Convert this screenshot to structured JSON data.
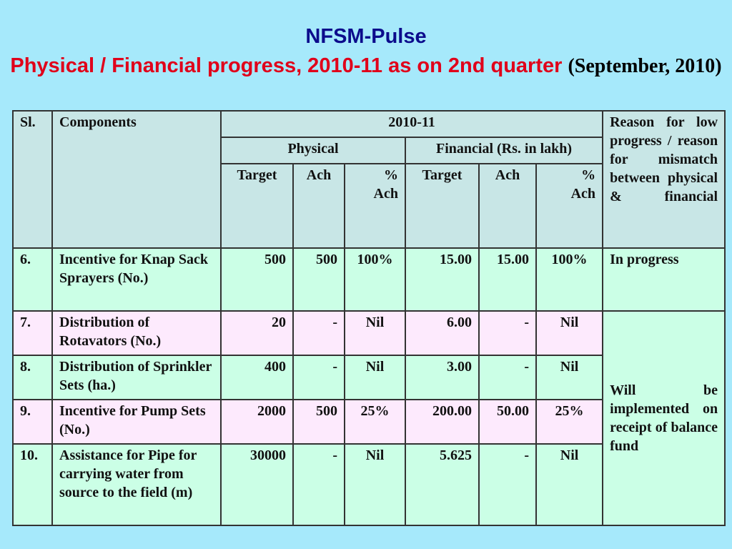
{
  "title": "NFSM-Pulse",
  "subtitle_main": "Physical / Financial progress, 2010-11 as on 2nd quarter",
  "subtitle_note": "(September, 2010)",
  "table": {
    "headers": {
      "sl": "Sl.",
      "components": "Components",
      "year": "2010-11",
      "physical": "Physical",
      "financial": "Financial (Rs. in lakh)",
      "target": "Target",
      "ach": "Ach",
      "pct_ach": "% Ach",
      "reason": "Reason for low progress / reason for mismatch between physical & financial"
    },
    "rows": [
      {
        "sl": "6.",
        "component": "Incentive for Knap Sack Sprayers (No.)",
        "p_target": "500",
        "p_ach": "500",
        "p_pct": "100%",
        "f_target": "15.00",
        "f_ach": "15.00",
        "f_pct": "100%",
        "reason": "In progress"
      },
      {
        "sl": "7.",
        "component": "Distribution of Rotavators (No.)",
        "p_target": "20",
        "p_ach": "-",
        "p_pct": "Nil",
        "f_target": "6.00",
        "f_ach": "-",
        "f_pct": "Nil",
        "reason": "Will be implemented on receipt of balance fund"
      },
      {
        "sl": "8.",
        "component": "Distribution of Sprinkler Sets (ha.)",
        "p_target": "400",
        "p_ach": "-",
        "p_pct": "Nil",
        "f_target": "3.00",
        "f_ach": "-",
        "f_pct": "Nil"
      },
      {
        "sl": "9.",
        "component": "Incentive for Pump Sets (No.)",
        "p_target": "2000",
        "p_ach": "500",
        "p_pct": "25%",
        "f_target": "200.00",
        "f_ach": "50.00",
        "f_pct": "25%"
      },
      {
        "sl": "10.",
        "component": "Assistance for Pipe for carrying water from source to the field (m)",
        "p_target": "30000",
        "p_ach": "-",
        "p_pct": "Nil",
        "f_target": "5.625",
        "f_ach": "-",
        "f_pct": "Nil"
      }
    ]
  }
}
